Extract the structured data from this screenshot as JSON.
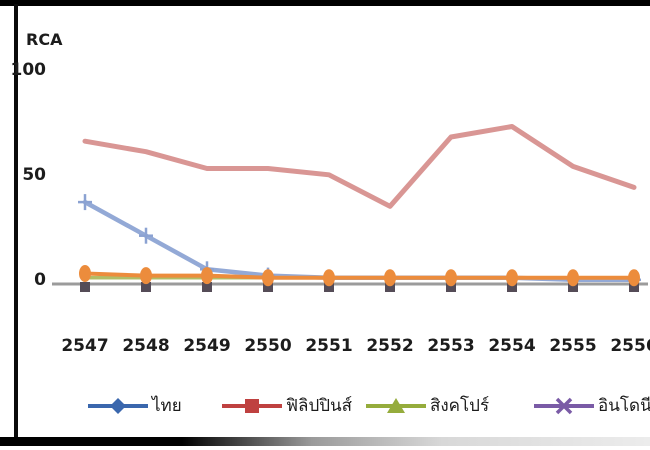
{
  "frame": {
    "background": "#ffffff",
    "top_bar_color": "#000000",
    "left_border_color": "#0a0a0a",
    "bottom_bar_color": "#000000"
  },
  "chart_data": {
    "type": "line",
    "title": "",
    "ylabel": "RCA",
    "xlabel": "",
    "ylim": [
      0,
      100
    ],
    "yticks": [
      0,
      50,
      100
    ],
    "grid": false,
    "legend_position": "bottom",
    "axis_color": "#9b9b9b",
    "categories": [
      "2547",
      "2548",
      "2549",
      "2550",
      "2551",
      "2552",
      "2553",
      "2554",
      "2555",
      "2556"
    ],
    "series": [
      {
        "key": "philippines",
        "name": "ฟิลิปปินส์",
        "color": "#d99694",
        "line_width": 5,
        "marker": "none",
        "values": [
          68,
          63,
          55,
          55,
          52,
          37,
          70,
          75,
          56,
          46
        ]
      },
      {
        "key": "thailand",
        "name": "ไทย",
        "color": "#93a9d6",
        "marker_color": "#8ba2d2",
        "line_width": 4.5,
        "marker": "plus",
        "values": [
          39,
          23,
          7,
          4,
          3,
          3,
          3,
          3,
          2,
          2
        ]
      },
      {
        "key": "singapore",
        "name": "สิงคโปร์",
        "color": "#b2bd66",
        "line_width": 3.5,
        "marker": "none",
        "values": [
          3,
          3,
          3,
          3,
          3,
          3,
          3,
          3,
          3,
          3
        ]
      },
      {
        "key": "indonesia",
        "name": "อินโดนีเซีย",
        "color": "#554c57",
        "line": "none",
        "marker": "square",
        "marker_size": 10,
        "values": [
          0,
          0,
          0,
          0,
          0,
          0,
          0,
          0,
          0,
          0
        ]
      },
      {
        "key": "unlabeled",
        "name": "",
        "color": "#ec8c3c",
        "line_width": 4,
        "marker": "ellipse",
        "values": [
          5,
          4,
          4,
          3,
          3,
          3,
          3,
          3,
          3,
          3
        ]
      }
    ]
  },
  "legend": {
    "items": [
      {
        "label": "ไทย",
        "color": "#3a67ad",
        "marker": "diamond"
      },
      {
        "label": "ฟิลิปปินส์",
        "color": "#bf4140",
        "marker": "square"
      },
      {
        "label": "สิงคโปร์",
        "color": "#95ac3c",
        "marker": "triangle"
      },
      {
        "label": "อินโดนีเซีย",
        "color": "#7a5ba6",
        "marker": "x"
      }
    ]
  }
}
